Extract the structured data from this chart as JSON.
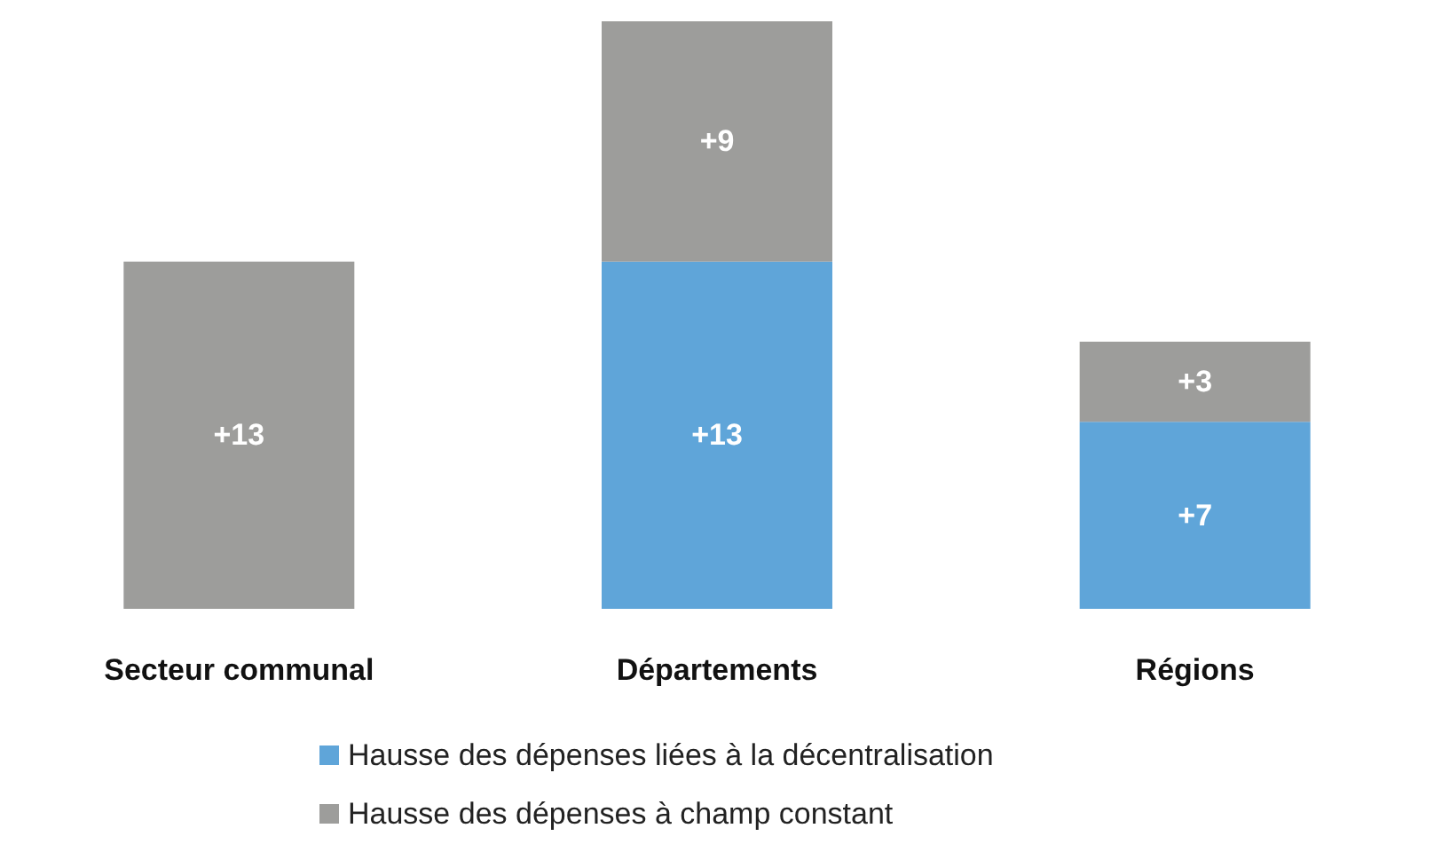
{
  "chart_data": {
    "type": "bar",
    "stacked": true,
    "categories": [
      "Secteur communal",
      "Départements",
      "Régions"
    ],
    "series": [
      {
        "name": "Hausse des dépenses liées à la décentralisation",
        "color": "#5fa5d9",
        "values": [
          null,
          13,
          7
        ],
        "value_labels": [
          null,
          "+13",
          "+7"
        ]
      },
      {
        "name": "Hausse des dépenses à champ constant",
        "color": "#9d9d9b",
        "values": [
          13,
          9,
          3
        ],
        "value_labels": [
          "+13",
          "+9",
          "+3"
        ]
      }
    ],
    "legend": "bottom"
  }
}
